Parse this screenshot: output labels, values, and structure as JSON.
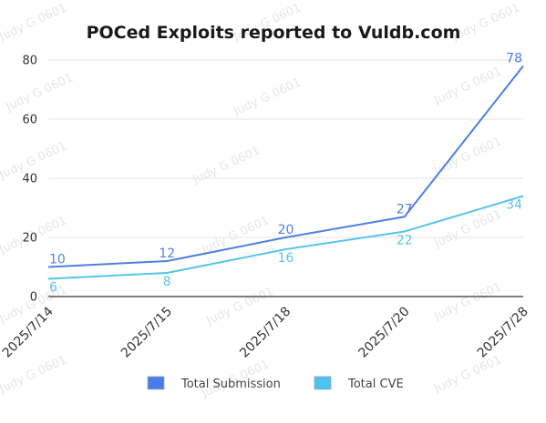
{
  "watermark": "Judy G 0601",
  "chart_data": {
    "type": "line",
    "title": "POCed Exploits reported to Vuldb.com",
    "xlabel": "",
    "ylabel": "",
    "categories": [
      "2025/7/14",
      "2025/7/15",
      "2025/7/18",
      "2025/7/20",
      "2025/7/28"
    ],
    "ylim": [
      0,
      80
    ],
    "yticks": [
      0,
      20,
      40,
      60,
      80
    ],
    "grid": true,
    "legend_position": "bottom",
    "series": [
      {
        "name": "Total Submission",
        "values": [
          10,
          12,
          20,
          27,
          78
        ],
        "color": "#4f7fe0",
        "legend_color": "#4a7ce8"
      },
      {
        "name": "Total CVE",
        "values": [
          6,
          8,
          16,
          22,
          34
        ],
        "color": "#58c4e8",
        "legend_color": "#4cc3ee"
      }
    ]
  }
}
